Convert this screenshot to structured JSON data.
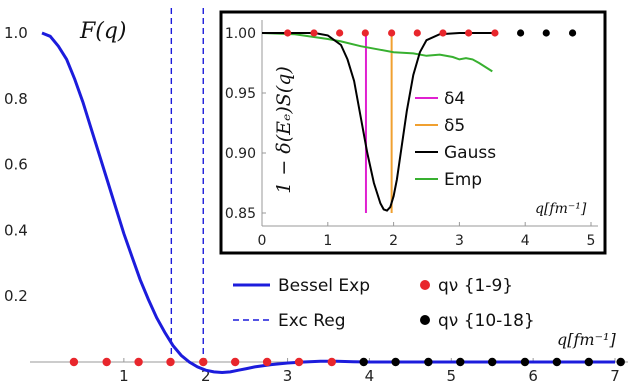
{
  "chart_data": [
    {
      "type": "line",
      "panel": "main",
      "ylabel": "F(q)",
      "xlabel": "q[fm⁻¹]",
      "xlim": [
        0,
        7
      ],
      "ylim": [
        0,
        1
      ],
      "x_ticks": [
        "1",
        "2",
        "3",
        "4",
        "5",
        "6",
        "7"
      ],
      "y_ticks": [
        "0.2",
        "0.4",
        "0.6",
        "0.8",
        "1.0"
      ],
      "legend_position": "bottom-right",
      "series": [
        {
          "name": "Bessel Exp",
          "color": "#1c1cdc",
          "x": [
            0,
            0.1,
            0.2,
            0.3,
            0.4,
            0.5,
            0.6,
            0.7,
            0.8,
            0.9,
            1.0,
            1.1,
            1.2,
            1.3,
            1.4,
            1.5,
            1.6,
            1.7,
            1.8,
            1.9,
            2.0,
            2.1,
            2.2,
            2.3,
            2.4,
            2.5,
            2.6,
            2.8,
            3.0,
            3.2,
            3.4,
            3.6,
            3.8,
            4.0,
            4.5,
            5.0,
            5.5,
            6.0,
            6.5,
            7.0
          ],
          "y": [
            1.0,
            0.99,
            0.96,
            0.92,
            0.86,
            0.79,
            0.71,
            0.63,
            0.55,
            0.47,
            0.39,
            0.32,
            0.25,
            0.19,
            0.135,
            0.09,
            0.05,
            0.02,
            0.0,
            -0.015,
            -0.025,
            -0.03,
            -0.032,
            -0.03,
            -0.025,
            -0.02,
            -0.015,
            -0.008,
            -0.003,
            0.0,
            0.002,
            0.002,
            0.001,
            0.0,
            0.0,
            0.0,
            0.0,
            0.0,
            0.0,
            0.0
          ]
        },
        {
          "name": "Exc Reg",
          "color": "#1c1cdc",
          "style": "dashed",
          "x": [
            1.58,
            1.97
          ]
        },
        {
          "name": "qν {1-9}",
          "color": "#e8262c",
          "x": [
            0.39,
            0.79,
            1.18,
            1.57,
            1.97,
            2.36,
            2.75,
            3.14,
            3.54
          ],
          "y": [
            0,
            0,
            0,
            0,
            0,
            0,
            0,
            0,
            0
          ]
        },
        {
          "name": "qν {10-18}",
          "color": "#000000",
          "x": [
            3.93,
            4.32,
            4.72,
            5.11,
            5.5,
            5.9,
            6.29,
            6.68,
            7.07
          ],
          "y": [
            0,
            0,
            0,
            0,
            0,
            0,
            0,
            0,
            0
          ]
        }
      ]
    },
    {
      "type": "line",
      "panel": "inset",
      "ylabel": "1 − δ(Eₑ)S(q)",
      "xlabel": "q[fm⁻¹]",
      "xlim": [
        0,
        5
      ],
      "ylim": [
        0.84,
        1.005
      ],
      "x_ticks": [
        "0",
        "1",
        "2",
        "3",
        "4",
        "5"
      ],
      "y_ticks": [
        "0.85",
        "0.90",
        "0.95",
        "1.00"
      ],
      "legend_position": "center-right",
      "series": [
        {
          "name": "δ4",
          "color": "#e020d0",
          "x": [
            1.58
          ]
        },
        {
          "name": "δ5",
          "color": "#f0a030",
          "x": [
            1.97
          ]
        },
        {
          "name": "Gauss",
          "color": "#000000",
          "x": [
            0,
            0.8,
            1.0,
            1.2,
            1.3,
            1.4,
            1.5,
            1.6,
            1.7,
            1.8,
            1.85,
            1.9,
            1.95,
            2.0,
            2.05,
            2.1,
            2.2,
            2.3,
            2.4,
            2.5,
            2.7,
            3.0,
            3.5
          ],
          "y": [
            1.0,
            1.0,
            0.998,
            0.99,
            0.978,
            0.96,
            0.93,
            0.9,
            0.875,
            0.858,
            0.853,
            0.852,
            0.855,
            0.864,
            0.878,
            0.897,
            0.935,
            0.965,
            0.984,
            0.994,
            0.999,
            1.0,
            1.0
          ]
        },
        {
          "name": "Emp",
          "color": "#38b030",
          "x": [
            0,
            0.5,
            1.0,
            1.2,
            1.5,
            1.8,
            2.0,
            2.3,
            2.5,
            2.7,
            2.9,
            3.0,
            3.1,
            3.2,
            3.3,
            3.5
          ],
          "y": [
            1.0,
            0.999,
            0.995,
            0.993,
            0.989,
            0.986,
            0.984,
            0.983,
            0.981,
            0.982,
            0.98,
            0.978,
            0.979,
            0.978,
            0.975,
            0.968
          ]
        },
        {
          "name": "qν {1-9}",
          "color": "#e8262c",
          "x": [
            0.39,
            0.79,
            1.18,
            1.57,
            1.97,
            2.36,
            2.75,
            3.14,
            3.54
          ],
          "y": [
            1,
            1,
            1,
            1,
            1,
            1,
            1,
            1,
            1
          ]
        },
        {
          "name": "qν {10-18}",
          "color": "#000000",
          "x": [
            3.93,
            4.32,
            4.72
          ],
          "y": [
            1,
            1,
            1
          ]
        }
      ]
    }
  ]
}
